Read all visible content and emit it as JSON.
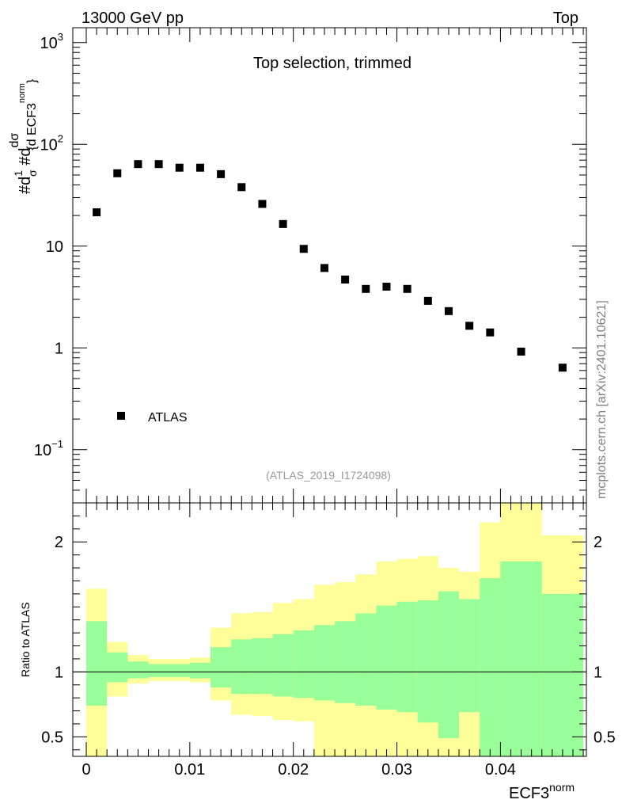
{
  "header": {
    "left_label": "13000 GeV pp",
    "right_label": "Top"
  },
  "watermark": "mcplots.cern.ch [arXiv:2401.10621]",
  "colors": {
    "marker": "#000000",
    "band_outer": "#ffff99",
    "band_inner": "#99ff99",
    "axis": "#000000",
    "ref_label": "#999999"
  },
  "chart_data": [
    {
      "type": "scatter",
      "title": "Top selection, trimmed",
      "ref_label": "(ATLAS_2019_I1724098)",
      "xlabel": "ECF3",
      "xlabel_sup": "norm",
      "ylabel": "#dσ/#d{d ECF3^norm} / σ",
      "yscale": "log",
      "ylim": [
        0.03,
        1400
      ],
      "xlim": [
        -0.0013,
        0.0483
      ],
      "y_ticks": [
        {
          "value": 0.1,
          "base": "10",
          "exp": "−1"
        },
        {
          "value": 1,
          "base": "1",
          "exp": ""
        },
        {
          "value": 10,
          "base": "10",
          "exp": ""
        },
        {
          "value": 100,
          "base": "10",
          "exp": "2"
        },
        {
          "value": 1000,
          "base": "10",
          "exp": "3"
        }
      ],
      "legend": [
        {
          "label": "ATLAS",
          "marker": "square",
          "position": "bottom-left"
        }
      ],
      "series": [
        {
          "name": "ATLAS",
          "x": [
            0.001,
            0.003,
            0.005,
            0.007,
            0.009,
            0.011,
            0.013,
            0.015,
            0.017,
            0.019,
            0.021,
            0.023,
            0.025,
            0.027,
            0.029,
            0.031,
            0.033,
            0.035,
            0.037,
            0.039,
            0.042,
            0.046
          ],
          "y": [
            21.5,
            52,
            64,
            64,
            59,
            59,
            51,
            38,
            26,
            16.5,
            9.4,
            6.1,
            4.7,
            3.8,
            4.0,
            3.8,
            2.9,
            2.3,
            1.65,
            1.42,
            0.92,
            0.64
          ]
        }
      ]
    },
    {
      "type": "area",
      "ylabel": "Ratio to ATLAS",
      "xlabel": "ECF3",
      "xlabel_sup": "norm",
      "ylim": [
        0.35,
        2.3
      ],
      "xlim": [
        -0.0013,
        0.0483
      ],
      "y_ticks": [
        {
          "value": 0.5,
          "label": "0.5"
        },
        {
          "value": 1,
          "label": "1"
        },
        {
          "value": 2,
          "label": "2"
        }
      ],
      "x_ticks": [
        {
          "value": 0,
          "label": "0"
        },
        {
          "value": 0.01,
          "label": "0.01"
        },
        {
          "value": 0.02,
          "label": "0.02"
        },
        {
          "value": 0.03,
          "label": "0.03"
        },
        {
          "value": 0.04,
          "label": "0.04"
        }
      ],
      "reference_line": 1,
      "bins": [
        {
          "lo": 0.0,
          "hi": 0.002,
          "outer": [
            0.35,
            1.64
          ],
          "inner": [
            0.74,
            1.39
          ]
        },
        {
          "lo": 0.002,
          "hi": 0.004,
          "outer": [
            0.81,
            1.23
          ],
          "inner": [
            0.92,
            1.15
          ]
        },
        {
          "lo": 0.004,
          "hi": 0.006,
          "outer": [
            0.91,
            1.13
          ],
          "inner": [
            0.95,
            1.08
          ]
        },
        {
          "lo": 0.006,
          "hi": 0.008,
          "outer": [
            0.93,
            1.1
          ],
          "inner": [
            0.96,
            1.06
          ]
        },
        {
          "lo": 0.008,
          "hi": 0.01,
          "outer": [
            0.93,
            1.1
          ],
          "inner": [
            0.96,
            1.06
          ]
        },
        {
          "lo": 0.01,
          "hi": 0.012,
          "outer": [
            0.92,
            1.11
          ],
          "inner": [
            0.95,
            1.07
          ]
        },
        {
          "lo": 0.012,
          "hi": 0.014,
          "outer": [
            0.78,
            1.34
          ],
          "inner": [
            0.88,
            1.19
          ]
        },
        {
          "lo": 0.014,
          "hi": 0.016,
          "outer": [
            0.67,
            1.45
          ],
          "inner": [
            0.83,
            1.25
          ]
        },
        {
          "lo": 0.016,
          "hi": 0.018,
          "outer": [
            0.66,
            1.46
          ],
          "inner": [
            0.83,
            1.26
          ]
        },
        {
          "lo": 0.018,
          "hi": 0.02,
          "outer": [
            0.63,
            1.53
          ],
          "inner": [
            0.81,
            1.29
          ]
        },
        {
          "lo": 0.02,
          "hi": 0.022,
          "outer": [
            0.62,
            1.56
          ],
          "inner": [
            0.8,
            1.32
          ]
        },
        {
          "lo": 0.022,
          "hi": 0.024,
          "outer": [
            0.35,
            1.67
          ],
          "inner": [
            0.78,
            1.36
          ]
        },
        {
          "lo": 0.024,
          "hi": 0.026,
          "outer": [
            0.35,
            1.69
          ],
          "inner": [
            0.76,
            1.39
          ]
        },
        {
          "lo": 0.026,
          "hi": 0.028,
          "outer": [
            0.35,
            1.75
          ],
          "inner": [
            0.74,
            1.45
          ]
        },
        {
          "lo": 0.028,
          "hi": 0.03,
          "outer": [
            0.35,
            1.85
          ],
          "inner": [
            0.71,
            1.51
          ]
        },
        {
          "lo": 0.03,
          "hi": 0.032,
          "outer": [
            0.35,
            1.87
          ],
          "inner": [
            0.69,
            1.54
          ]
        },
        {
          "lo": 0.032,
          "hi": 0.034,
          "outer": [
            0.35,
            1.89
          ],
          "inner": [
            0.61,
            1.55
          ]
        },
        {
          "lo": 0.034,
          "hi": 0.036,
          "outer": [
            0.35,
            1.8
          ],
          "inner": [
            0.49,
            1.62
          ]
        },
        {
          "lo": 0.036,
          "hi": 0.038,
          "outer": [
            0.35,
            1.77
          ],
          "inner": [
            0.69,
            1.56
          ]
        },
        {
          "lo": 0.038,
          "hi": 0.04,
          "outer": [
            0.35,
            2.15
          ],
          "inner": [
            0.35,
            1.72
          ]
        },
        {
          "lo": 0.04,
          "hi": 0.044,
          "outer": [
            0.35,
            2.3
          ],
          "inner": [
            0.35,
            1.85
          ]
        },
        {
          "lo": 0.044,
          "hi": 0.048,
          "outer": [
            0.35,
            2.05
          ],
          "inner": [
            0.35,
            1.6
          ]
        }
      ]
    }
  ]
}
